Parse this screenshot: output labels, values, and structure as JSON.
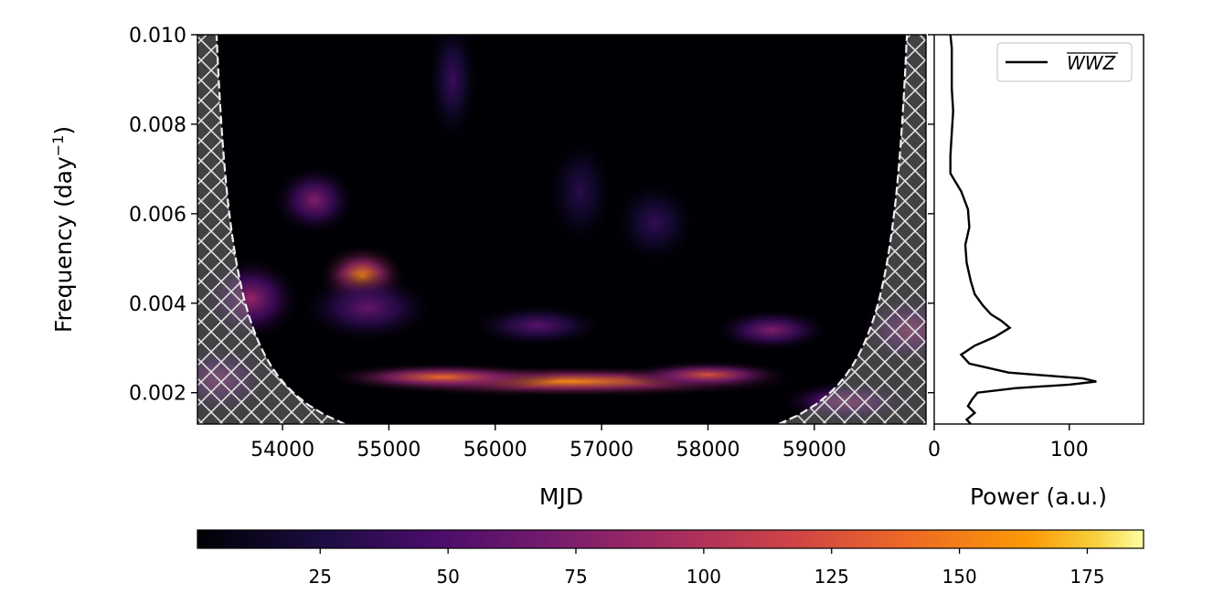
{
  "chart_data": [
    {
      "type": "heatmap",
      "xlabel": "MJD",
      "ylabel_main": "Frequency (day",
      "ylabel_sup": "−1",
      "ylabel_end": ")",
      "xlim": [
        53200,
        60050
      ],
      "ylim": [
        0.0013,
        0.01
      ],
      "xticks": [
        54000,
        55000,
        56000,
        57000,
        58000,
        59000
      ],
      "xtick_labels": [
        "54000",
        "55000",
        "56000",
        "57000",
        "58000",
        "59000"
      ],
      "yticks": [
        0.002,
        0.004,
        0.006,
        0.008,
        0.01
      ],
      "ytick_labels": [
        "0.002",
        "0.004",
        "0.006",
        "0.008",
        "0.010"
      ],
      "colormap": "inferno",
      "cone_of_influence": "hatched regions at left and right edges",
      "hotspots": [
        {
          "mjd": 56700,
          "freq": 0.00225,
          "power": 155,
          "mjd_width": 1400,
          "freq_width": 0.00022
        },
        {
          "mjd": 55500,
          "freq": 0.00235,
          "power": 140,
          "mjd_width": 700,
          "freq_width": 0.0002
        },
        {
          "mjd": 58000,
          "freq": 0.0024,
          "power": 125,
          "mjd_width": 500,
          "freq_width": 0.0002
        },
        {
          "mjd": 54750,
          "freq": 0.0046,
          "power": 155,
          "mjd_width": 260,
          "freq_width": 0.00045
        },
        {
          "mjd": 54300,
          "freq": 0.0063,
          "power": 75,
          "mjd_width": 250,
          "freq_width": 0.0005
        },
        {
          "mjd": 53700,
          "freq": 0.0041,
          "power": 85,
          "mjd_width": 300,
          "freq_width": 0.0006
        },
        {
          "mjd": 58600,
          "freq": 0.0034,
          "power": 75,
          "mjd_width": 350,
          "freq_width": 0.0003
        },
        {
          "mjd": 56400,
          "freq": 0.0035,
          "power": 55,
          "mjd_width": 400,
          "freq_width": 0.0003
        },
        {
          "mjd": 54800,
          "freq": 0.0039,
          "power": 60,
          "mjd_width": 400,
          "freq_width": 0.0005
        },
        {
          "mjd": 59900,
          "freq": 0.0034,
          "power": 90,
          "mjd_width": 300,
          "freq_width": 0.0005
        },
        {
          "mjd": 53400,
          "freq": 0.0023,
          "power": 80,
          "mjd_width": 300,
          "freq_width": 0.0005
        },
        {
          "mjd": 59300,
          "freq": 0.0018,
          "power": 85,
          "mjd_width": 400,
          "freq_width": 0.0003
        },
        {
          "mjd": 55600,
          "freq": 0.009,
          "power": 40,
          "mjd_width": 150,
          "freq_width": 0.0009
        },
        {
          "mjd": 57500,
          "freq": 0.0058,
          "power": 35,
          "mjd_width": 250,
          "freq_width": 0.0006
        },
        {
          "mjd": 56800,
          "freq": 0.0065,
          "power": 30,
          "mjd_width": 200,
          "freq_width": 0.0008
        }
      ]
    },
    {
      "type": "line",
      "xlabel": "Power (a.u.)",
      "xlim": [
        0,
        155
      ],
      "ylim": [
        0.0013,
        0.01
      ],
      "xticks": [
        0,
        100
      ],
      "xtick_labels": [
        "0",
        "100"
      ],
      "legend": {
        "label": "WWZ",
        "overline": true,
        "position": "top-right"
      },
      "series": [
        {
          "name": "WWZ",
          "power": [
            27,
            24,
            30,
            25,
            28,
            32,
            60,
            100,
            120,
            110,
            55,
            26,
            20,
            30,
            45,
            56,
            50,
            42,
            36,
            30,
            27,
            24,
            23,
            26,
            25,
            20,
            12,
            12,
            13,
            14,
            13,
            13,
            13,
            12
          ],
          "freq": [
            0.0013,
            0.0014,
            0.00155,
            0.0017,
            0.00185,
            0.002,
            0.0021,
            0.00218,
            0.00225,
            0.00232,
            0.00245,
            0.00265,
            0.00285,
            0.00305,
            0.00325,
            0.00345,
            0.0036,
            0.00375,
            0.00395,
            0.0042,
            0.0045,
            0.0049,
            0.0053,
            0.0057,
            0.0061,
            0.0065,
            0.0069,
            0.0073,
            0.0078,
            0.0083,
            0.0088,
            0.0093,
            0.0097,
            0.01
          ]
        }
      ]
    },
    {
      "type": "colorbar",
      "range": [
        1,
        186
      ],
      "ticks": [
        25,
        50,
        75,
        100,
        125,
        150,
        175
      ],
      "tick_labels": [
        "25",
        "50",
        "75",
        "100",
        "125",
        "150",
        "175"
      ],
      "colormap": "inferno"
    }
  ]
}
